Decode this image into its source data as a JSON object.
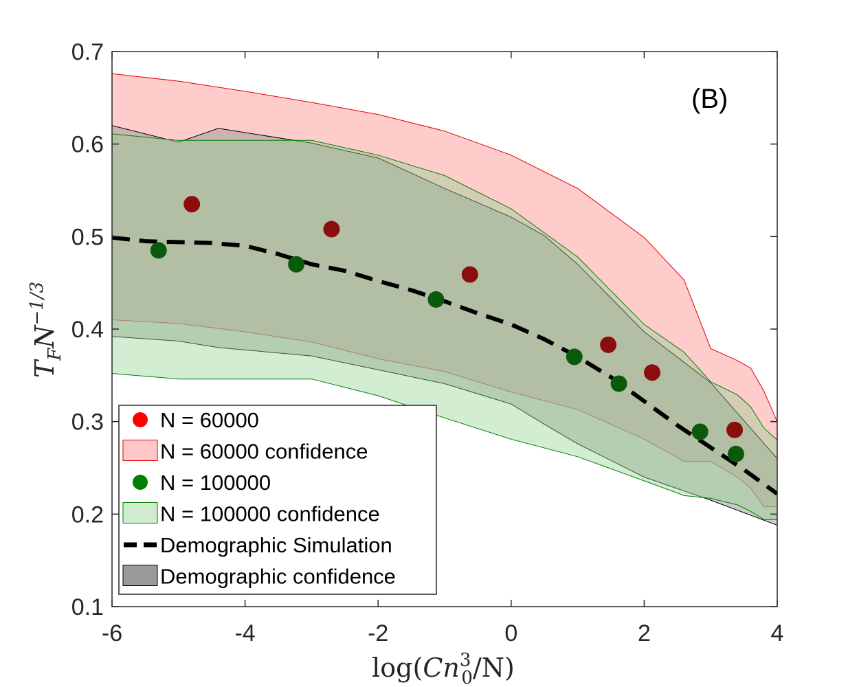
{
  "chart_data": {
    "type": "scatter",
    "panel_label": "(B)",
    "xlabel": "log(Cn₀³/N)",
    "xlabel_parts": {
      "pre": "log(",
      "var": "Cn",
      "sub": "0",
      "sup": "3",
      "post": "/N)"
    },
    "ylabel": "T_F N^{-1/3}",
    "ylabel_parts": {
      "var1": "T",
      "sub1": "F",
      "var2": "N",
      "sup2": "−1/3"
    },
    "xlim": [
      -6,
      4
    ],
    "ylim": [
      0.1,
      0.7
    ],
    "x_ticks": [
      -6,
      -4,
      -2,
      0,
      2,
      4
    ],
    "x_tick_labels": [
      "-6",
      "-4",
      "-2",
      "0",
      "2",
      "4"
    ],
    "y_ticks": [
      0.1,
      0.2,
      0.3,
      0.4,
      0.5,
      0.6,
      0.7
    ],
    "y_tick_labels": [
      "0.1",
      "0.2",
      "0.3",
      "0.4",
      "0.5",
      "0.6",
      "0.7"
    ],
    "grid": false,
    "legend_position": "bottom-left",
    "bands": [
      {
        "name": "N = 60000 confidence",
        "fill": "#ff9999",
        "fill_opacity": 0.5,
        "stroke": "#e00000",
        "x": [
          -6,
          -5,
          -4,
          -3,
          -2,
          -1,
          0,
          1,
          2,
          2.6,
          3,
          3.4,
          3.6,
          3.8,
          4
        ],
        "upper": [
          0.676,
          0.668,
          0.657,
          0.645,
          0.632,
          0.614,
          0.588,
          0.552,
          0.499,
          0.453,
          0.379,
          0.366,
          0.358,
          0.333,
          0.3
        ],
        "lower": [
          0.41,
          0.406,
          0.397,
          0.386,
          0.368,
          0.354,
          0.332,
          0.313,
          0.281,
          0.257,
          0.257,
          0.24,
          0.228,
          0.208,
          0.208
        ]
      },
      {
        "name": "Demographic confidence",
        "fill": "#999999",
        "fill_opacity": 0.5,
        "stroke": "#000000",
        "x": [
          -6,
          -5,
          -4.4,
          -3,
          -2,
          -1,
          0,
          0.5,
          1,
          2,
          3,
          4
        ],
        "upper": [
          0.62,
          0.602,
          0.617,
          0.601,
          0.585,
          0.552,
          0.521,
          0.501,
          0.47,
          0.397,
          0.342,
          0.26
        ],
        "lower": [
          0.392,
          0.387,
          0.38,
          0.371,
          0.356,
          0.341,
          0.319,
          0.297,
          0.276,
          0.24,
          0.215,
          0.188
        ]
      },
      {
        "name": "N = 100000 confidence",
        "fill": "#8fd18f",
        "fill_opacity": 0.4,
        "stroke": "#008000",
        "x": [
          -6,
          -5,
          -4,
          -3,
          -2,
          -1,
          0,
          1,
          2,
          2.6,
          3,
          3.4,
          3.6,
          3.8,
          4
        ],
        "upper": [
          0.611,
          0.604,
          0.604,
          0.604,
          0.588,
          0.566,
          0.53,
          0.478,
          0.405,
          0.375,
          0.343,
          0.329,
          0.316,
          0.293,
          0.28
        ],
        "lower": [
          0.352,
          0.346,
          0.346,
          0.346,
          0.328,
          0.304,
          0.281,
          0.262,
          0.236,
          0.22,
          0.217,
          0.21,
          0.203,
          0.194,
          0.194
        ]
      }
    ],
    "series": [
      {
        "name": "N = 60000",
        "kind": "points",
        "color": "#ff0000",
        "display_color": "#8b0d0d",
        "x": [
          -4.8,
          -2.7,
          -0.62,
          1.46,
          2.12,
          3.36
        ],
        "y": [
          0.535,
          0.508,
          0.459,
          0.383,
          0.353,
          0.291
        ]
      },
      {
        "name": "N = 100000",
        "kind": "points",
        "color": "#008000",
        "display_color": "#0b5a0b",
        "x": [
          -5.3,
          -3.23,
          -1.13,
          0.95,
          1.62,
          2.84,
          3.38
        ],
        "y": [
          0.485,
          0.47,
          0.432,
          0.37,
          0.341,
          0.289,
          0.265
        ]
      },
      {
        "name": "Demographic Simulation",
        "kind": "dashed-line",
        "color": "#000000",
        "x": [
          -6,
          -5.5,
          -5,
          -4.5,
          -4,
          -3.5,
          -3,
          -2.5,
          -2,
          -1.5,
          -1,
          -0.5,
          0,
          0.5,
          1,
          1.5,
          2,
          2.5,
          3,
          3.5,
          4
        ],
        "y": [
          0.499,
          0.495,
          0.494,
          0.493,
          0.49,
          0.481,
          0.47,
          0.463,
          0.452,
          0.442,
          0.43,
          0.417,
          0.405,
          0.389,
          0.37,
          0.348,
          0.322,
          0.296,
          0.272,
          0.248,
          0.222
        ]
      }
    ],
    "legend": [
      {
        "label": "N = 60000",
        "swatch": "marker",
        "color": "#ff0000"
      },
      {
        "label": "N = 60000 confidence",
        "swatch": "patch",
        "color": "#ffc7c7",
        "edge": "#e00000"
      },
      {
        "label": "N = 100000",
        "swatch": "marker",
        "color": "#008000"
      },
      {
        "label": "N = 100000 confidence",
        "swatch": "patch",
        "color": "#cfeccf",
        "edge": "#008000"
      },
      {
        "label": "Demographic Simulation",
        "swatch": "dash",
        "color": "#000000"
      },
      {
        "label": "Demographic confidence",
        "swatch": "patch",
        "color": "#9a9a9a",
        "edge": "#000000"
      }
    ]
  }
}
